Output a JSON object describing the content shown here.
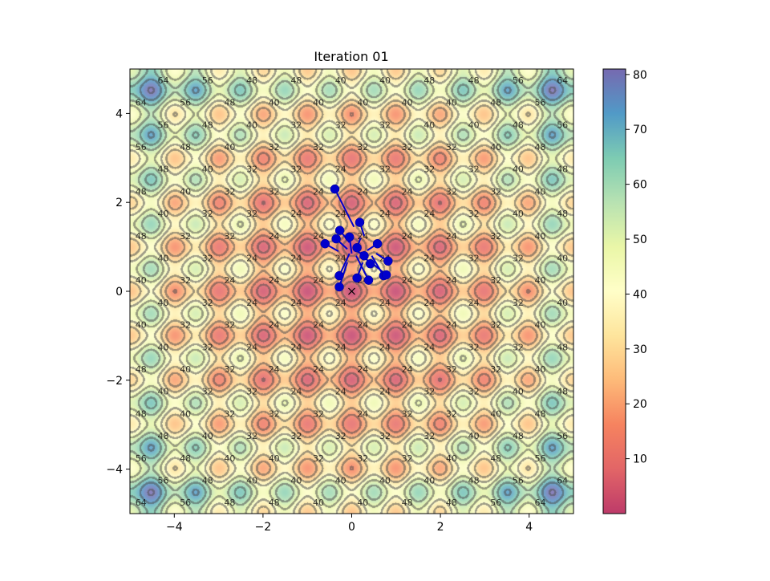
{
  "chart_data": {
    "type": "contour_scatter",
    "title": "Iteration 01",
    "xlabel": "",
    "ylabel": "",
    "xlim": [
      -5,
      5
    ],
    "ylim": [
      -5,
      5
    ],
    "x_ticks": [
      -4,
      -2,
      0,
      2,
      4
    ],
    "y_ticks": [
      -4,
      -2,
      0,
      2,
      4
    ],
    "x_tick_labels": [
      "−4",
      "−2",
      "0",
      "2",
      "4"
    ],
    "y_tick_labels": [
      "−4",
      "−2",
      "0",
      "2",
      "4"
    ],
    "surface": "rastrigin",
    "colormap": "Spectral",
    "contour_levels": [
      8,
      16,
      24,
      32,
      40,
      48,
      56,
      64,
      72
    ],
    "contour_label_sample": [
      "8",
      "16",
      "24",
      "32",
      "40",
      "48",
      "56",
      "64",
      "72"
    ],
    "colorbar": {
      "min": 0,
      "max": 81,
      "ticks": [
        10,
        20,
        30,
        40,
        50,
        60,
        70,
        80
      ],
      "tick_labels": [
        "10",
        "20",
        "30",
        "40",
        "50",
        "60",
        "70",
        "80"
      ]
    },
    "optimum_marker": {
      "x": 0,
      "y": 0,
      "symbol": "x"
    },
    "particles": {
      "color": "#0000cc",
      "points": [
        {
          "x": -0.38,
          "y": 2.3
        },
        {
          "x": 0.18,
          "y": 1.55
        },
        {
          "x": -0.27,
          "y": 1.37
        },
        {
          "x": -0.35,
          "y": 1.18
        },
        {
          "x": -0.6,
          "y": 1.07
        },
        {
          "x": -0.05,
          "y": 1.22
        },
        {
          "x": 0.58,
          "y": 1.07
        },
        {
          "x": 0.12,
          "y": 0.98
        },
        {
          "x": 0.28,
          "y": 0.8
        },
        {
          "x": 0.42,
          "y": 0.62
        },
        {
          "x": 0.82,
          "y": 0.68
        },
        {
          "x": -0.28,
          "y": 0.35
        },
        {
          "x": 0.12,
          "y": 0.3
        },
        {
          "x": 0.38,
          "y": 0.25
        },
        {
          "x": 0.72,
          "y": 0.35
        },
        {
          "x": 0.78,
          "y": 0.37
        },
        {
          "x": -0.28,
          "y": 0.1
        }
      ],
      "previous": [
        {
          "x": 0.05,
          "y": 1.45
        },
        {
          "x": 0.28,
          "y": 1.25
        },
        {
          "x": -0.05,
          "y": 1.1
        },
        {
          "x": -0.1,
          "y": 0.95
        },
        {
          "x": -0.3,
          "y": 0.9
        },
        {
          "x": 0.0,
          "y": 0.85
        },
        {
          "x": 0.35,
          "y": 0.92
        },
        {
          "x": 0.2,
          "y": 1.2
        },
        {
          "x": 0.05,
          "y": 0.95
        },
        {
          "x": 0.2,
          "y": 0.88
        },
        {
          "x": 0.55,
          "y": 0.85
        },
        {
          "x": -0.05,
          "y": 0.85
        },
        {
          "x": 0.25,
          "y": 0.65
        },
        {
          "x": 0.1,
          "y": 0.8
        },
        {
          "x": 0.45,
          "y": 0.8
        },
        {
          "x": 0.5,
          "y": 0.6
        },
        {
          "x": -0.1,
          "y": 0.65
        }
      ]
    }
  }
}
